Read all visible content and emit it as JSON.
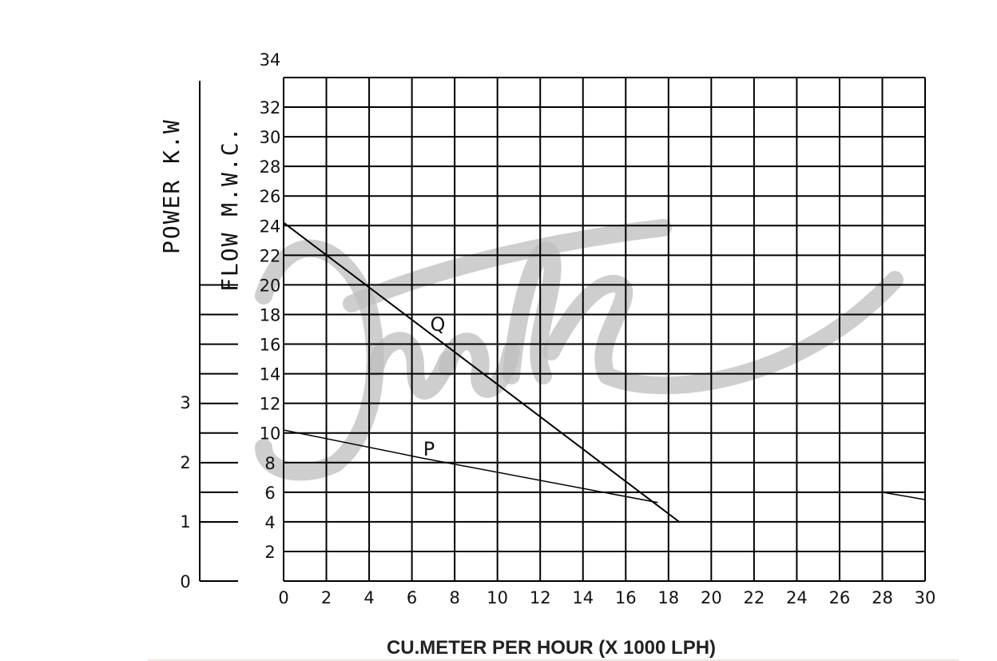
{
  "chart_data": {
    "type": "line",
    "xlabel": "CU.METER PER HOUR (X 1000 LPH)",
    "ylabel_head": "FLOW M.W.C.",
    "ylabel_power": "POWER K.W",
    "x_ticks": [
      "0",
      "2",
      "4",
      "6",
      "8",
      "10",
      "12",
      "14",
      "16",
      "18",
      "20",
      "22",
      "24",
      "26",
      "28",
      "30"
    ],
    "y_ticks": [
      "2",
      "4",
      "6",
      "8",
      "10",
      "12",
      "14",
      "16",
      "18",
      "20",
      "22",
      "24",
      "26",
      "28",
      "30",
      "32",
      "34"
    ],
    "power_ticks": [
      "0",
      "1",
      "2",
      "3"
    ],
    "xlim": [
      0,
      30
    ],
    "ylim": [
      0,
      34
    ],
    "grid": true,
    "series": [
      {
        "name": "Q",
        "x": [
          0,
          18.5
        ],
        "y": [
          24.2,
          4.0
        ]
      },
      {
        "name": "P",
        "x": [
          0,
          6.5,
          17.5
        ],
        "y": [
          10.2,
          8.3,
          5.3
        ]
      },
      {
        "name": "",
        "x": [
          28,
          30
        ],
        "y": [
          6.0,
          5.5
        ]
      }
    ]
  }
}
